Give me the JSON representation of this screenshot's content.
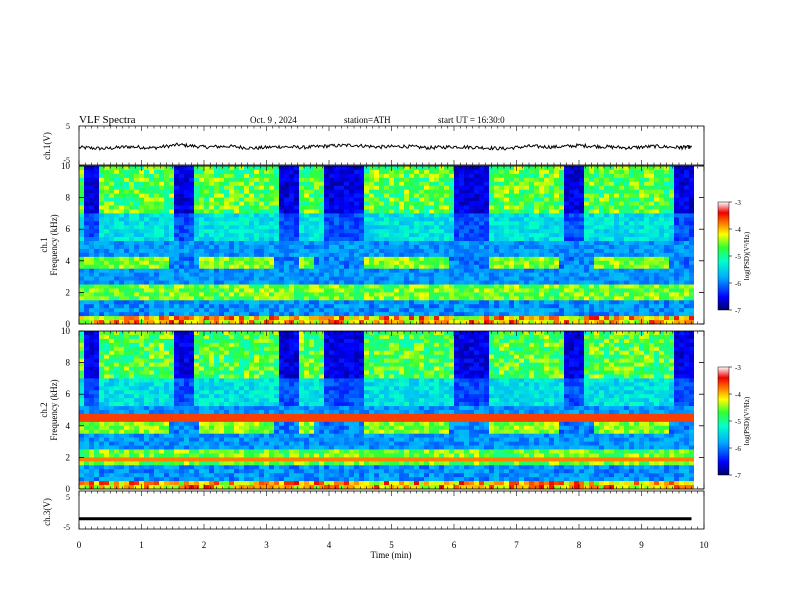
{
  "header": {
    "title": "VLF Spectra",
    "date": "Oct. 9 , 2024",
    "station": "station=ATH",
    "start": "start UT = 16:30:0"
  },
  "chart_data": [
    {
      "type": "line",
      "panel": "ch1-waveform",
      "ylabel": "ch.1(V)",
      "ylim": [
        -5,
        5
      ],
      "yticks": [
        "5",
        "-5"
      ],
      "xlim": [
        0,
        10
      ],
      "x": [
        0,
        0.4,
        0.8,
        1.2,
        1.6,
        2.0,
        2.4,
        2.8,
        3.2,
        3.6,
        4.0,
        4.4,
        4.8,
        5.2,
        5.6,
        6.0,
        6.4,
        6.8,
        7.2,
        7.6,
        8.0,
        8.4,
        8.8,
        9.2,
        9.6,
        9.8
      ],
      "values": [
        -0.5,
        -0.8,
        -0.3,
        -0.6,
        0.2,
        -0.4,
        -0.2,
        -0.7,
        -0.3,
        -0.5,
        -0.1,
        0.1,
        -0.4,
        -0.2,
        -0.6,
        -0.3,
        -0.5,
        -0.8,
        -0.2,
        -0.4,
        0.0,
        -0.3,
        -0.6,
        -0.2,
        -0.5,
        -0.4
      ]
    },
    {
      "type": "heatmap",
      "panel": "ch1-spectrogram",
      "ylabel": "Frequency (kHz)",
      "ylabel_top": "ch.1",
      "ylim": [
        0,
        10
      ],
      "yticks": [
        "0",
        "2",
        "4",
        "6",
        "8",
        "10"
      ],
      "xlim": [
        0,
        10
      ],
      "colorbar": {
        "label": "log(PSD)(V²/Hz)",
        "range": [
          -7,
          -3
        ],
        "ticks": [
          "-3",
          "-4",
          "-5",
          "-6",
          "-7"
        ]
      },
      "band_khz": [
        3.4,
        4.3
      ],
      "band_gaps_min": [
        [
          1.45,
          1.9
        ],
        [
          3.15,
          3.55
        ],
        [
          3.8,
          4.6
        ],
        [
          5.95,
          6.6
        ],
        [
          7.7,
          8.2
        ],
        [
          9.45,
          9.8
        ]
      ]
    },
    {
      "type": "heatmap",
      "panel": "ch2-spectrogram",
      "ylabel": "Frequency (kHz)",
      "ylabel_top": "ch.2",
      "ylim": [
        0,
        10
      ],
      "yticks": [
        "0",
        "2",
        "4",
        "6",
        "8",
        "10"
      ],
      "xlim": [
        0,
        10
      ],
      "colorbar": {
        "label": "log(PSD)(V²/Hz)",
        "range": [
          -7,
          -3
        ],
        "ticks": [
          "-3",
          "-4",
          "-5",
          "-6",
          "-7"
        ]
      },
      "band_khz": [
        3.4,
        4.3
      ],
      "band_gaps_min": [
        [
          1.45,
          1.9
        ],
        [
          3.15,
          3.55
        ],
        [
          3.8,
          4.6
        ],
        [
          5.95,
          6.6
        ],
        [
          7.7,
          8.2
        ],
        [
          9.45,
          9.8
        ]
      ]
    },
    {
      "type": "line",
      "panel": "ch3-waveform",
      "ylabel": "ch.3(V)",
      "ylim": [
        -5,
        5
      ],
      "yticks": [
        "5",
        "-5"
      ],
      "xlim": [
        0,
        10
      ],
      "x": [
        0,
        9.8
      ],
      "values": [
        -2.3,
        -2.3
      ]
    }
  ],
  "xaxis": {
    "label": "Time (min)",
    "ticks": [
      "0",
      "1",
      "2",
      "3",
      "4",
      "5",
      "6",
      "7",
      "8",
      "9",
      "10"
    ]
  }
}
